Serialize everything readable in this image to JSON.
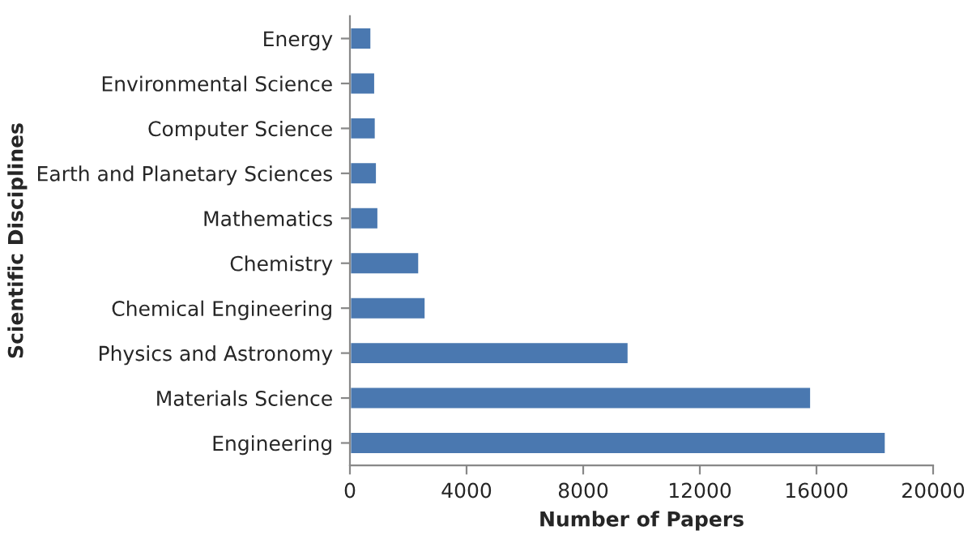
{
  "chart_data": {
    "type": "bar",
    "orientation": "horizontal",
    "xlabel": "Number of Papers",
    "ylabel": "Scientific Disciplines",
    "categories": [
      "Energy",
      "Environmental Science",
      "Computer Science",
      "Earth and Planetary Sciences",
      "Mathematics",
      "Chemistry",
      "Chemical Engineering",
      "Physics and Astronomy",
      "Materials Science",
      "Engineering"
    ],
    "values": [
      740,
      870,
      890,
      930,
      980,
      2380,
      2600,
      9560,
      15820,
      18380
    ],
    "color": "#4a78b0",
    "xlim": [
      0,
      20000
    ],
    "xticks": [
      0,
      4000,
      8000,
      12000,
      16000,
      20000
    ],
    "grid": false,
    "legend": false
  }
}
